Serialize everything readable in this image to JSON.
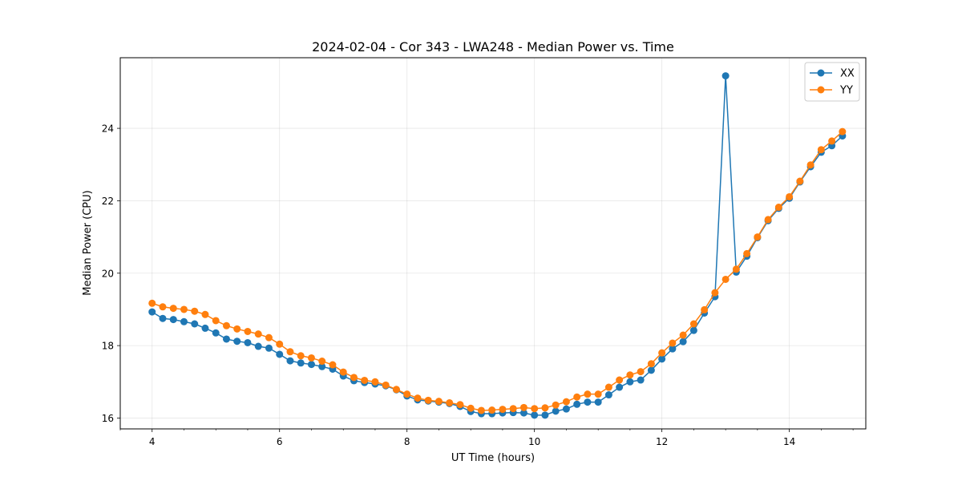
{
  "chart_data": {
    "type": "line",
    "title": "2024-02-04 - Cor 343 - LWA248 - Median Power vs. Time",
    "xlabel": "UT Time (hours)",
    "ylabel": "Median Power (CPU)",
    "xlim": [
      3.5,
      15.2
    ],
    "ylim": [
      15.7,
      25.95
    ],
    "xticks": [
      4,
      6,
      8,
      10,
      12,
      14
    ],
    "yticks": [
      16,
      18,
      20,
      22,
      24
    ],
    "grid": true,
    "legend_position": "top-right",
    "x": [
      4.0,
      4.1667,
      4.3333,
      4.5,
      4.6667,
      4.8333,
      5.0,
      5.1667,
      5.3333,
      5.5,
      5.6667,
      5.8333,
      6.0,
      6.1667,
      6.3333,
      6.5,
      6.6667,
      6.8333,
      7.0,
      7.1667,
      7.3333,
      7.5,
      7.6667,
      7.8333,
      8.0,
      8.1667,
      8.3333,
      8.5,
      8.6667,
      8.8333,
      9.0,
      9.1667,
      9.3333,
      9.5,
      9.6667,
      9.8333,
      10.0,
      10.1667,
      10.3333,
      10.5,
      10.6667,
      10.8333,
      11.0,
      11.1667,
      11.3333,
      11.5,
      11.6667,
      11.8333,
      12.0,
      12.1667,
      12.3333,
      12.5,
      12.6667,
      12.8333,
      13.0,
      13.1667,
      13.3333,
      13.5,
      13.6667,
      13.8333,
      14.0,
      14.1667,
      14.3333,
      14.5,
      14.6667,
      14.8333
    ],
    "series": [
      {
        "name": "XX",
        "color": "#1f77b4",
        "values": [
          18.93,
          18.75,
          18.72,
          18.66,
          18.6,
          18.48,
          18.35,
          18.18,
          18.12,
          18.08,
          17.98,
          17.93,
          17.76,
          17.58,
          17.52,
          17.48,
          17.42,
          17.35,
          17.16,
          17.03,
          16.98,
          16.94,
          16.89,
          16.78,
          16.61,
          16.5,
          16.47,
          16.44,
          16.4,
          16.32,
          16.18,
          16.12,
          16.12,
          16.14,
          16.15,
          16.14,
          16.08,
          16.08,
          16.19,
          16.25,
          16.38,
          16.44,
          16.44,
          16.64,
          16.85,
          17.0,
          17.05,
          17.32,
          17.63,
          17.91,
          18.11,
          18.42,
          18.9,
          19.35,
          25.45,
          20.03,
          20.47,
          20.98,
          21.45,
          21.79,
          22.07,
          22.52,
          22.94,
          23.34,
          23.52,
          23.79
        ]
      },
      {
        "name": "YY",
        "color": "#ff7f0e",
        "values": [
          19.17,
          19.07,
          19.03,
          19.0,
          18.95,
          18.86,
          18.69,
          18.55,
          18.46,
          18.39,
          18.32,
          18.22,
          18.04,
          17.83,
          17.72,
          17.66,
          17.57,
          17.47,
          17.27,
          17.12,
          17.04,
          17.0,
          16.91,
          16.79,
          16.66,
          16.55,
          16.49,
          16.46,
          16.42,
          16.37,
          16.27,
          16.21,
          16.22,
          16.24,
          16.26,
          16.29,
          16.26,
          16.28,
          16.36,
          16.45,
          16.58,
          16.66,
          16.66,
          16.85,
          17.05,
          17.19,
          17.28,
          17.5,
          17.8,
          18.07,
          18.29,
          18.6,
          18.99,
          19.46,
          19.83,
          20.11,
          20.54,
          21.0,
          21.48,
          21.82,
          22.11,
          22.54,
          22.99,
          23.41,
          23.65,
          23.91
        ]
      }
    ]
  }
}
